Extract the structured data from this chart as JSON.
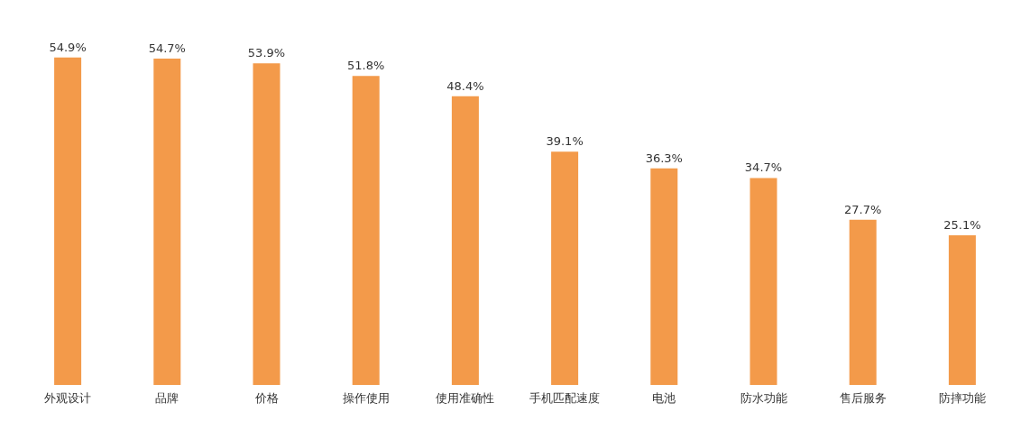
{
  "chart_data": {
    "type": "bar",
    "categories": [
      "外观设计",
      "品牌",
      "价格",
      "操作使用",
      "使用准确性",
      "手机匹配速度",
      "电池",
      "防水功能",
      "售后服务",
      "防摔功能"
    ],
    "values": [
      54.9,
      54.7,
      53.9,
      51.8,
      48.4,
      39.1,
      36.3,
      34.7,
      27.7,
      25.1
    ],
    "value_labels": [
      "54.9%",
      "54.7%",
      "53.9%",
      "51.8%",
      "48.4%",
      "39.1%",
      "36.3%",
      "34.7%",
      "27.7%",
      "25.1%"
    ],
    "color": "#f39a4a"
  }
}
